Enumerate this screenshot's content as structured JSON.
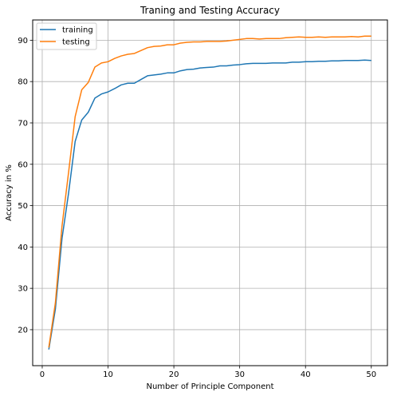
{
  "chart_data": {
    "type": "line",
    "title": "Traning and Testing Accuracy",
    "xlabel": "Number of Principle Component",
    "ylabel": "Accuracy in %",
    "xlim": [
      -1.45,
      52.45
    ],
    "ylim": [
      11.3,
      94.9
    ],
    "xticks": [
      0,
      10,
      20,
      30,
      40,
      50
    ],
    "yticks": [
      20,
      30,
      40,
      50,
      60,
      70,
      80,
      90
    ],
    "grid": true,
    "legend_position": "top-left",
    "x": [
      1,
      2,
      3,
      4,
      5,
      6,
      7,
      8,
      9,
      10,
      11,
      12,
      13,
      14,
      15,
      16,
      17,
      18,
      19,
      20,
      21,
      22,
      23,
      24,
      25,
      26,
      27,
      28,
      29,
      30,
      31,
      32,
      33,
      34,
      35,
      36,
      37,
      38,
      39,
      40,
      41,
      42,
      43,
      44,
      45,
      46,
      47,
      48,
      49,
      50
    ],
    "series": [
      {
        "name": "training",
        "color": "#1f77b4",
        "values": [
          15.2,
          25.0,
          42.0,
          53.0,
          65.5,
          70.7,
          72.6,
          76.0,
          77.0,
          77.5,
          78.3,
          79.2,
          79.6,
          79.6,
          80.5,
          81.4,
          81.6,
          81.8,
          82.1,
          82.1,
          82.6,
          82.9,
          83.0,
          83.3,
          83.4,
          83.5,
          83.8,
          83.8,
          84.0,
          84.1,
          84.3,
          84.4,
          84.4,
          84.4,
          84.5,
          84.5,
          84.5,
          84.7,
          84.7,
          84.8,
          84.8,
          84.9,
          84.9,
          85.0,
          85.0,
          85.1,
          85.1,
          85.1,
          85.2,
          85.1
        ]
      },
      {
        "name": "testing",
        "color": "#ff7f0e",
        "values": [
          15.7,
          26.5,
          45.0,
          58.0,
          71.5,
          78.0,
          79.8,
          83.5,
          84.5,
          84.8,
          85.6,
          86.2,
          86.6,
          86.8,
          87.5,
          88.2,
          88.5,
          88.6,
          88.9,
          88.9,
          89.3,
          89.5,
          89.6,
          89.6,
          89.7,
          89.7,
          89.7,
          89.8,
          90.0,
          90.2,
          90.4,
          90.4,
          90.3,
          90.4,
          90.4,
          90.4,
          90.6,
          90.7,
          90.8,
          90.7,
          90.7,
          90.8,
          90.7,
          90.8,
          90.8,
          90.8,
          90.9,
          90.8,
          91.0,
          91.0
        ]
      }
    ]
  }
}
